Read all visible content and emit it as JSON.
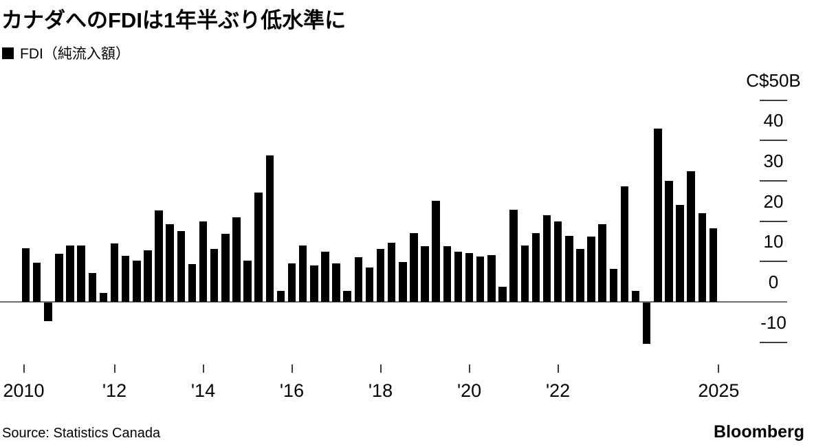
{
  "title": "カナダへのFDIは1年半ぶり低水準に",
  "legend": {
    "label": "FDI（純流入額）",
    "swatch_color": "#000000"
  },
  "source": "Source: Statistics Canada",
  "brand": "Bloomberg",
  "chart_data": {
    "type": "bar",
    "title": "カナダへのFDIは1年半ぶり低水準に",
    "series_name": "FDI（純流入額）",
    "unit": "C$B",
    "categories": [
      "2010Q1",
      "2010Q2",
      "2010Q3",
      "2010Q4",
      "2011Q1",
      "2011Q2",
      "2011Q3",
      "2011Q4",
      "2012Q1",
      "2012Q2",
      "2012Q3",
      "2012Q4",
      "2013Q1",
      "2013Q2",
      "2013Q3",
      "2013Q4",
      "2014Q1",
      "2014Q2",
      "2014Q3",
      "2014Q4",
      "2015Q1",
      "2015Q2",
      "2015Q3",
      "2015Q4",
      "2016Q1",
      "2016Q2",
      "2016Q3",
      "2016Q4",
      "2017Q1",
      "2017Q2",
      "2017Q3",
      "2017Q4",
      "2018Q1",
      "2018Q2",
      "2018Q3",
      "2018Q4",
      "2019Q1",
      "2019Q2",
      "2019Q3",
      "2019Q4",
      "2020Q1",
      "2020Q2",
      "2020Q3",
      "2020Q4",
      "2021Q1",
      "2021Q2",
      "2021Q3",
      "2021Q4",
      "2022Q1",
      "2022Q2",
      "2022Q3",
      "2022Q4",
      "2023Q1",
      "2023Q2",
      "2023Q3",
      "2023Q4",
      "2024Q1",
      "2024Q2",
      "2024Q3",
      "2024Q4",
      "2025Q1",
      "2025Q2",
      "2025Q3"
    ],
    "values": [
      13.3,
      9.7,
      -4.6,
      12.0,
      14.0,
      14.0,
      7.1,
      2.2,
      14.5,
      11.4,
      10.3,
      12.8,
      22.6,
      19.2,
      17.5,
      9.3,
      20.0,
      13.1,
      16.8,
      21.0,
      10.2,
      27.1,
      36.3,
      2.7,
      9.5,
      13.9,
      9.0,
      12.4,
      9.6,
      2.7,
      11.1,
      8.5,
      13.2,
      14.7,
      9.9,
      17.0,
      13.8,
      25.0,
      13.8,
      12.4,
      12.1,
      11.2,
      11.5,
      3.8,
      22.9,
      13.9,
      17.0,
      21.5,
      19.9,
      16.4,
      13.1,
      16.2,
      19.2,
      8.1,
      28.6,
      2.8,
      -10.3,
      43.0,
      29.9,
      24.1,
      32.4,
      21.9,
      18.2
    ],
    "ylim": [
      -15,
      52
    ],
    "yticks": [
      {
        "value": 50,
        "label": "C$50B"
      },
      {
        "value": 40,
        "label": "40"
      },
      {
        "value": 30,
        "label": "30"
      },
      {
        "value": 20,
        "label": "20"
      },
      {
        "value": 10,
        "label": "10"
      },
      {
        "value": 0,
        "label": "0"
      },
      {
        "value": -10,
        "label": "-10"
      }
    ],
    "xticks": [
      {
        "label": "2010",
        "index": 0,
        "dx": -3
      },
      {
        "label": "'12",
        "index": 8,
        "dx": 0
      },
      {
        "label": "'14",
        "index": 16,
        "dx": 0
      },
      {
        "label": "'16",
        "index": 24,
        "dx": 0
      },
      {
        "label": "'18",
        "index": 32,
        "dx": 0
      },
      {
        "label": "'20",
        "index": 40,
        "dx": 0
      },
      {
        "label": "'22",
        "index": 48,
        "dx": 0
      },
      {
        "label": "2025",
        "index": 62,
        "dx": 8
      }
    ],
    "bar_color": "#000000",
    "axis_color": "#6b6e71",
    "grid": false,
    "legend_position": "top-left"
  }
}
